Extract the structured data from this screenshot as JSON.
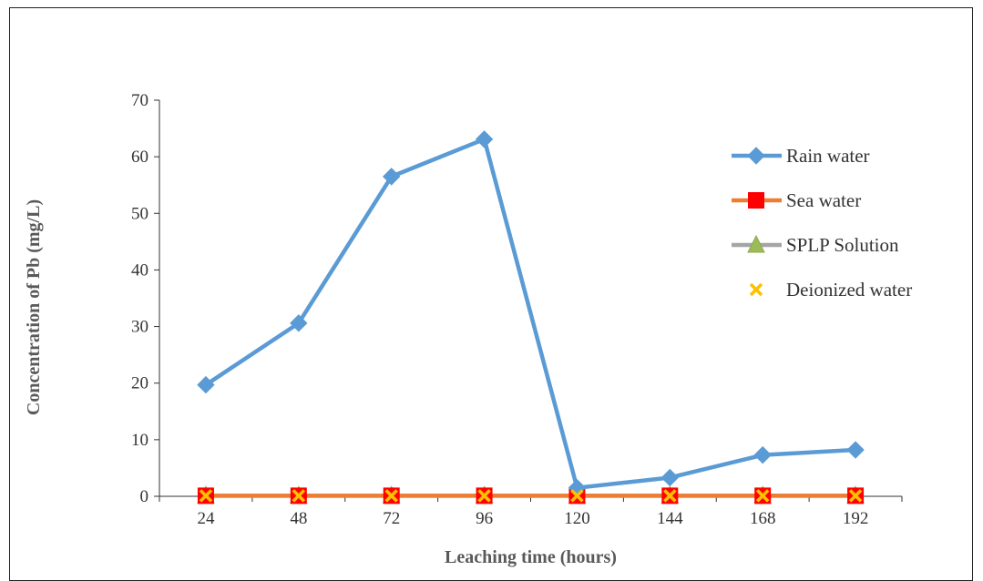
{
  "chart_data": {
    "type": "line",
    "title": "",
    "xlabel": "Leaching time (hours)",
    "ylabel": "Concentration of Pb (mg/L)",
    "categories": [
      "24",
      "48",
      "72",
      "96",
      "120",
      "144",
      "168",
      "192"
    ],
    "ylim": [
      0,
      70
    ],
    "yticks": [
      0,
      10,
      20,
      30,
      40,
      50,
      60,
      70
    ],
    "grid": false,
    "legend_position": "right",
    "series": [
      {
        "name": "Rain water",
        "values": [
          19.7,
          30.6,
          56.5,
          63.1,
          1.5,
          3.3,
          7.3,
          8.2
        ],
        "color": "#5b9bd5",
        "marker": "diamond",
        "line": true
      },
      {
        "name": "Sea water",
        "values": [
          0.1,
          0.1,
          0.1,
          0.1,
          0.1,
          0.1,
          0.1,
          0.1
        ],
        "color": "#ff0000",
        "line_color": "#ed7d31",
        "marker": "square",
        "line": true
      },
      {
        "name": "SPLP Solution",
        "values": [
          0.1,
          0.1,
          0.1,
          0.1,
          0.1,
          0.1,
          0.1,
          0.1
        ],
        "color": "#9bbb59",
        "line_color": "#a5a5a5",
        "marker": "triangle",
        "line": true
      },
      {
        "name": "Deionized water",
        "values": [
          0.1,
          0.1,
          0.1,
          0.1,
          0.1,
          0.1,
          0.1,
          0.1
        ],
        "color": "#ffc000",
        "marker": "x",
        "line": false
      }
    ]
  }
}
